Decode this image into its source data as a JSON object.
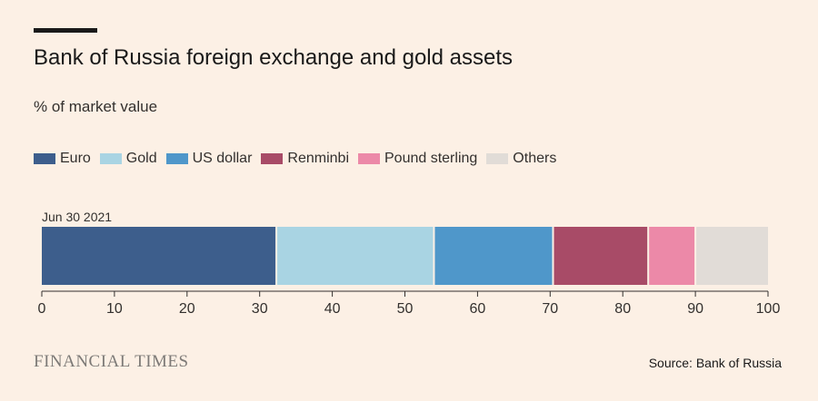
{
  "header": {
    "title": "Bank of Russia foreign exchange and gold assets",
    "subtitle": "% of market value"
  },
  "legend": [
    {
      "label": "Euro",
      "color": "#3D5E8C"
    },
    {
      "label": "Gold",
      "color": "#A9D4E3"
    },
    {
      "label": "US dollar",
      "color": "#4F97CA"
    },
    {
      "label": "Renminbi",
      "color": "#A84B67"
    },
    {
      "label": "Pound sterling",
      "color": "#EC89A8"
    },
    {
      "label": "Others",
      "color": "#E1DCD7"
    }
  ],
  "chart_data": {
    "type": "bar",
    "orientation": "horizontal",
    "stacked": true,
    "categories": [
      "Jun 30 2021"
    ],
    "series": [
      {
        "name": "Euro",
        "values": [
          32.3
        ]
      },
      {
        "name": "Gold",
        "values": [
          21.7
        ]
      },
      {
        "name": "US dollar",
        "values": [
          16.4
        ]
      },
      {
        "name": "Renminbi",
        "values": [
          13.1
        ]
      },
      {
        "name": "Pound sterling",
        "values": [
          6.5
        ]
      },
      {
        "name": "Others",
        "values": [
          10.0
        ]
      }
    ],
    "xlim": [
      0,
      100
    ],
    "xticks": [
      0,
      10,
      20,
      30,
      40,
      50,
      60,
      70,
      80,
      90,
      100
    ],
    "title": "Bank of Russia foreign exchange and gold assets",
    "subtitle": "% of market value",
    "legend_position": "top",
    "grid": false
  },
  "footer": {
    "brand": "FINANCIAL TIMES",
    "source": "Source: Bank of Russia"
  }
}
